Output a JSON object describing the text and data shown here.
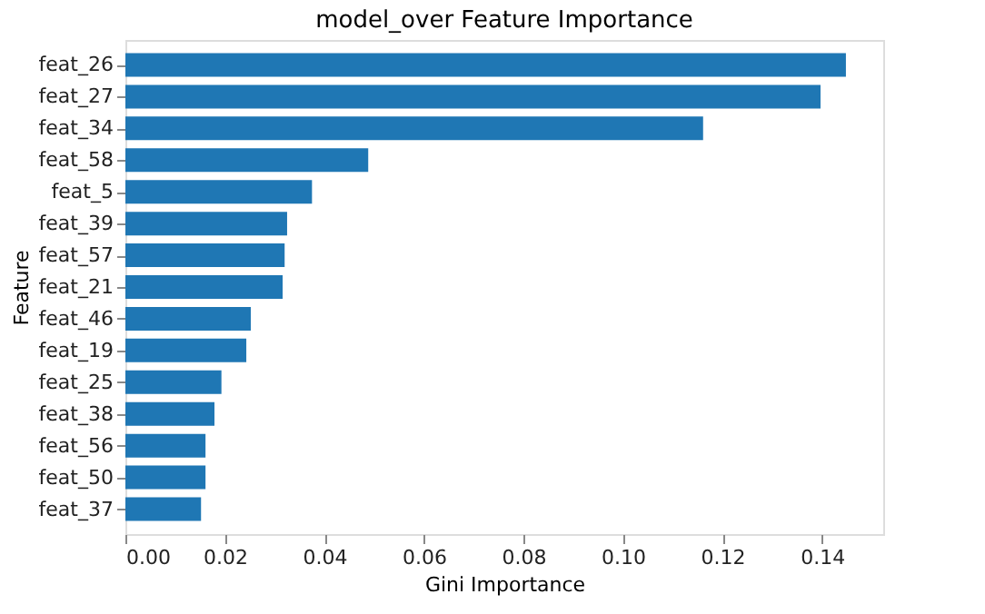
{
  "chart_data": {
    "type": "bar",
    "orientation": "horizontal",
    "title": "model_over Feature Importance",
    "xlabel": "Gini Importance",
    "ylabel": "Feature",
    "categories": [
      "feat_26",
      "feat_27",
      "feat_34",
      "feat_58",
      "feat_5",
      "feat_39",
      "feat_57",
      "feat_21",
      "feat_46",
      "feat_19",
      "feat_25",
      "feat_38",
      "feat_56",
      "feat_50",
      "feat_37"
    ],
    "values": [
      0.1448,
      0.1397,
      0.1161,
      0.0488,
      0.0375,
      0.0325,
      0.032,
      0.0316,
      0.0252,
      0.0243,
      0.0193,
      0.0179,
      0.0161,
      0.0161,
      0.0152
    ],
    "color": "#1f77b4",
    "xlim": [
      0,
      0.1523
    ],
    "xticks": [
      {
        "value": 0,
        "label": "0.00"
      },
      {
        "value": 0.02,
        "label": "0.02"
      },
      {
        "value": 0.04,
        "label": "0.04"
      },
      {
        "value": 0.06,
        "label": "0.06"
      },
      {
        "value": 0.08,
        "label": "0.08"
      },
      {
        "value": 0.1,
        "label": "0.10"
      },
      {
        "value": 0.12,
        "label": "0.12"
      },
      {
        "value": 0.14,
        "label": "0.14"
      }
    ],
    "grid": false
  }
}
